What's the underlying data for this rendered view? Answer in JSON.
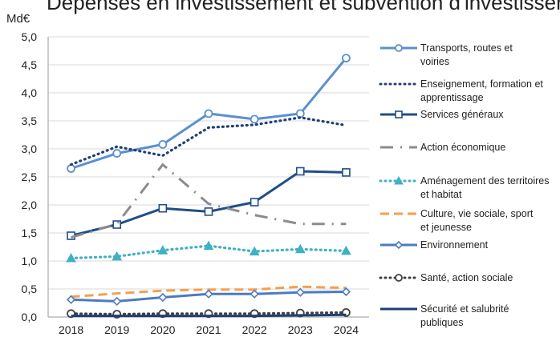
{
  "chart_data": {
    "type": "line",
    "title_fragment": "Dépenses en investissement et subvention d'investissement",
    "unit_label": "Md€",
    "x": [
      "2018",
      "2019",
      "2020",
      "2021",
      "2022",
      "2023",
      "2024"
    ],
    "y_ticks": [
      "0,0",
      "0,5",
      "1,0",
      "1,5",
      "2,0",
      "2,5",
      "3,0",
      "3,5",
      "4,0",
      "4,5",
      "5,0"
    ],
    "ylim": [
      0,
      5
    ],
    "grid": "horizontal",
    "legend_position": "right",
    "series": [
      {
        "name": "Transports, routes et voiries",
        "values": [
          2.65,
          2.92,
          3.08,
          3.63,
          3.53,
          3.63,
          4.62
        ],
        "color": "#5b8fd0",
        "style": "solid",
        "marker": "circle"
      },
      {
        "name": "Enseignement, formation et apprentissage",
        "values": [
          2.72,
          3.04,
          2.88,
          3.38,
          3.43,
          3.56,
          3.42
        ],
        "color": "#1f3f74",
        "style": "dotted",
        "marker": "none"
      },
      {
        "name": "Services généraux",
        "values": [
          1.45,
          1.65,
          1.94,
          1.88,
          2.05,
          2.6,
          2.58
        ],
        "color": "#1f4e87",
        "style": "solid",
        "marker": "square"
      },
      {
        "name": "Action économique",
        "values": [
          1.42,
          1.66,
          2.72,
          2.02,
          1.82,
          1.66,
          1.66
        ],
        "color": "#8c8c8c",
        "style": "dashdot",
        "marker": "none"
      },
      {
        "name": "Aménagement des territoires et habitat",
        "values": [
          1.05,
          1.08,
          1.19,
          1.27,
          1.17,
          1.21,
          1.18
        ],
        "color": "#3fb0c6",
        "style": "dotted",
        "marker": "triangle"
      },
      {
        "name": "Culture, vie sociale, sport et jeunesse",
        "values": [
          0.36,
          0.42,
          0.47,
          0.49,
          0.49,
          0.54,
          0.52
        ],
        "color": "#f5a04b",
        "style": "dashed",
        "marker": "none"
      },
      {
        "name": "Environnement",
        "values": [
          0.31,
          0.28,
          0.35,
          0.41,
          0.41,
          0.44,
          0.45
        ],
        "color": "#4a7bc4",
        "style": "solid",
        "marker": "diamond"
      },
      {
        "name": "Santé, action sociale",
        "values": [
          0.06,
          0.05,
          0.06,
          0.06,
          0.06,
          0.07,
          0.08
        ],
        "color": "#404040",
        "style": "dotted",
        "marker": "circle"
      },
      {
        "name": "Sécurité et salubrité publiques",
        "values": [
          0.02,
          0.02,
          0.02,
          0.02,
          0.02,
          0.03,
          0.04
        ],
        "color": "#1f3f74",
        "style": "solid",
        "marker": "none"
      }
    ]
  }
}
